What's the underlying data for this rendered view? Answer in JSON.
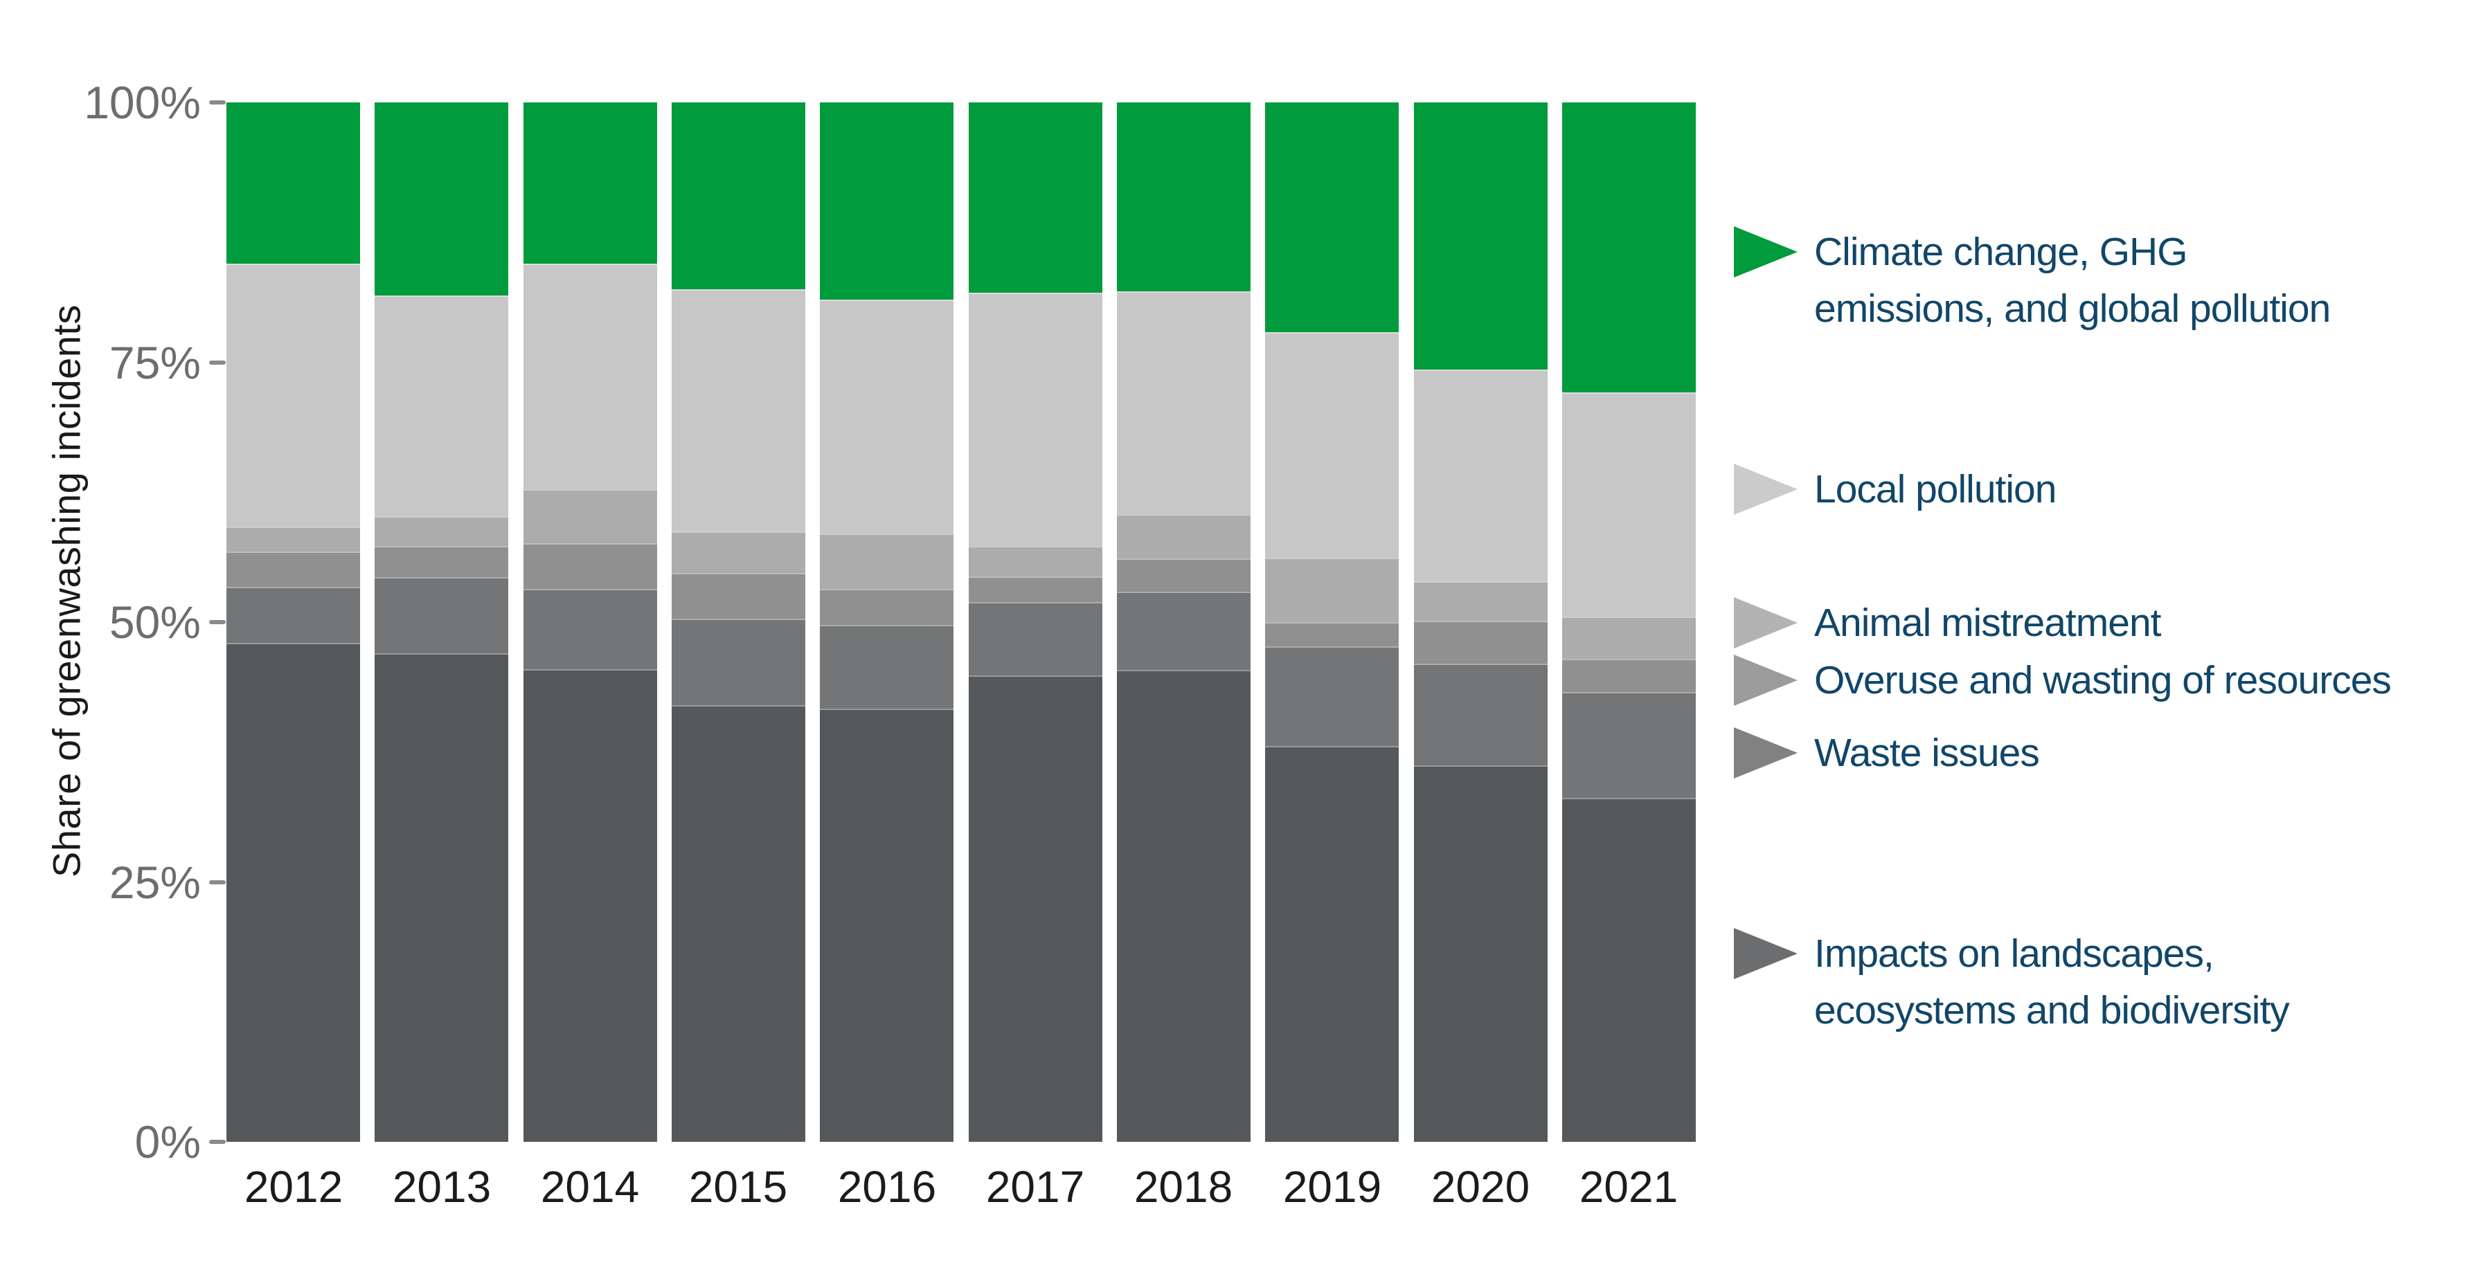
{
  "chart_data": {
    "type": "bar",
    "stacked": true,
    "orientation": "vertical",
    "title": "",
    "xlabel": "",
    "ylabel": "Share of greenwashing incidents",
    "ylim": [
      0,
      100
    ],
    "grid": false,
    "legend_position": "right",
    "categories": [
      "2012",
      "2013",
      "2014",
      "2015",
      "2016",
      "2017",
      "2018",
      "2019",
      "2020",
      "2021"
    ],
    "yticks": [
      {
        "value": 0,
        "label": "0%"
      },
      {
        "value": 25,
        "label": "25%"
      },
      {
        "value": 50,
        "label": "50%"
      },
      {
        "value": 75,
        "label": "75%"
      },
      {
        "value": 100,
        "label": "100%"
      }
    ],
    "series": [
      {
        "name": "Climate change, GHG emissions, and global pollution",
        "color": "#009b3d",
        "values": [
          15.5,
          18.6,
          15.5,
          18.0,
          19.0,
          18.3,
          18.2,
          22.1,
          25.7,
          27.9
        ]
      },
      {
        "name": "Local pollution",
        "color": "#c7c7c7",
        "values": [
          25.3,
          21.2,
          21.7,
          23.3,
          22.5,
          24.4,
          21.4,
          21.7,
          20.4,
          21.6
        ]
      },
      {
        "name": "Animal mistreatment",
        "color": "#acacac",
        "values": [
          2.4,
          2.9,
          5.2,
          4.0,
          5.3,
          2.9,
          4.3,
          6.2,
          3.8,
          4.0
        ]
      },
      {
        "name": "Overuse and wasting of resources",
        "color": "#909090",
        "values": [
          3.4,
          3.0,
          4.4,
          4.4,
          3.5,
          2.5,
          3.2,
          2.3,
          4.1,
          3.2
        ]
      },
      {
        "name": "Waste issues",
        "color": "#747576",
        "values": [
          5.4,
          7.3,
          7.7,
          8.3,
          8.0,
          7.0,
          7.5,
          9.6,
          9.8,
          10.2
        ]
      },
      {
        "name": "Impacts on landscapes, ecosystems and biodiversity",
        "color": "#54585b",
        "values": [
          48.0,
          47.0,
          45.5,
          42.0,
          41.7,
          44.9,
          45.4,
          38.1,
          36.2,
          33.1
        ]
      }
    ],
    "legend": {
      "items": [
        {
          "lines": [
            "Climate change, GHG",
            "emissions, and global pollution"
          ],
          "marker_color": "#009b3d"
        },
        {
          "lines": [
            "Local pollution"
          ],
          "marker_color": "#cbcbcb"
        },
        {
          "lines": [
            "Animal mistreatment"
          ],
          "marker_color": "#b3b3b3"
        },
        {
          "lines": [
            "Overuse and wasting of resources"
          ],
          "marker_color": "#9c9c9c"
        },
        {
          "lines": [
            "Waste issues"
          ],
          "marker_color": "#818181"
        },
        {
          "lines": [
            "Impacts on landscapes,",
            "ecosystems and biodiversity"
          ],
          "marker_color": "#6b6d6e"
        }
      ]
    },
    "colors": {
      "legend_text": "#114669",
      "tick_label": "#6d6d6d",
      "axis_title": "#1a1a1a",
      "category_label": "#1b1b1b",
      "background": "#ffffff"
    }
  }
}
